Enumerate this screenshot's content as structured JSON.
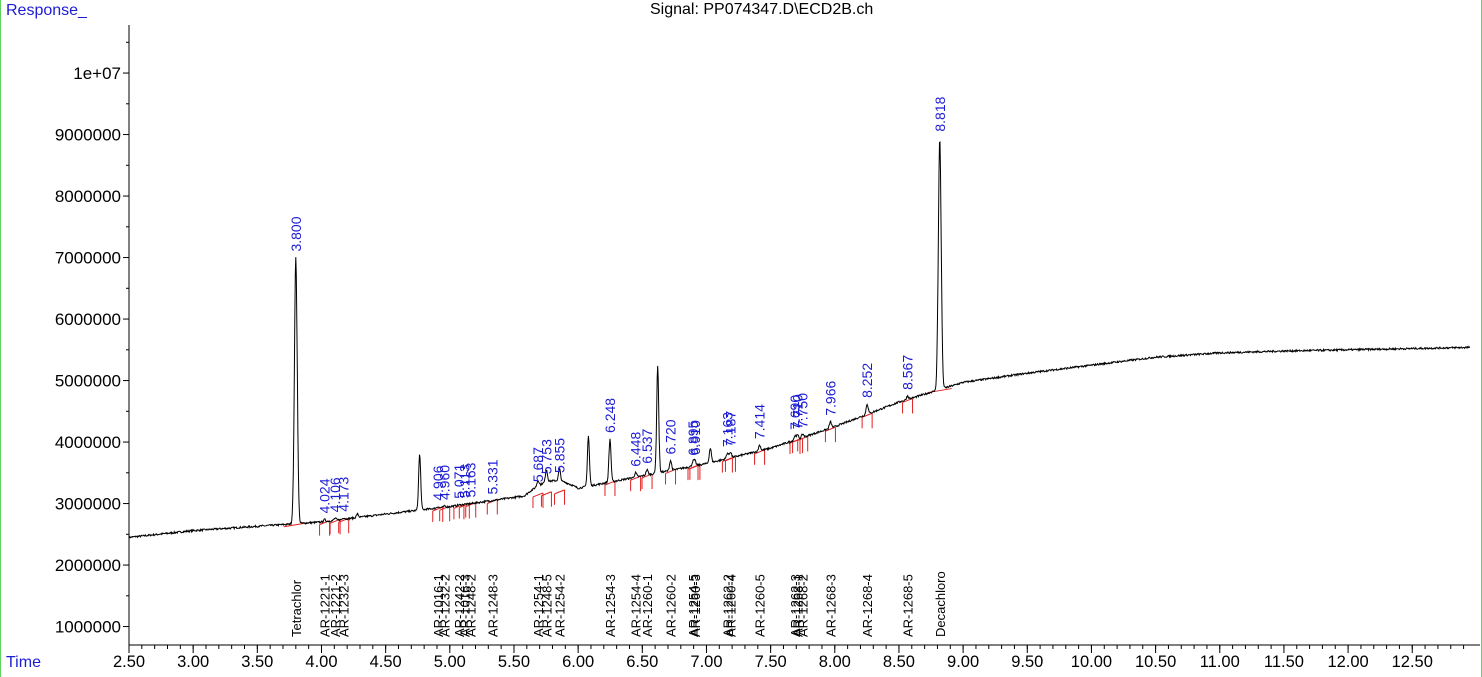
{
  "header": {
    "y_axis_title": "Response_",
    "x_axis_title": "Time",
    "signal_title": "Signal: PP074347.D\\ECD2B.ch"
  },
  "colors": {
    "trace": "#000000",
    "peak_labels": "#1c1cd4",
    "baselines": "#e02020",
    "frame": "#5fd35f"
  },
  "chart_data": {
    "type": "line",
    "title": "Signal: PP074347.D\\ECD2B.ch",
    "xlabel": "Time",
    "ylabel": "Response_",
    "xlim": [
      2.5,
      12.95
    ],
    "ylim": [
      700000,
      10700000
    ],
    "grid": false,
    "x_ticks": [
      "2.50",
      "3.00",
      "3.50",
      "4.00",
      "4.50",
      "5.00",
      "5.50",
      "6.00",
      "6.50",
      "7.00",
      "7.50",
      "8.00",
      "8.50",
      "9.00",
      "9.50",
      "10.00",
      "10.50",
      "11.00",
      "11.50",
      "12.00",
      "12.50"
    ],
    "y_ticks": [
      {
        "v": 1000000,
        "label": "1000000"
      },
      {
        "v": 2000000,
        "label": "2000000"
      },
      {
        "v": 3000000,
        "label": "3000000"
      },
      {
        "v": 4000000,
        "label": "4000000"
      },
      {
        "v": 5000000,
        "label": "5000000"
      },
      {
        "v": 6000000,
        "label": "6000000"
      },
      {
        "v": 7000000,
        "label": "7000000"
      },
      {
        "v": 8000000,
        "label": "8000000"
      },
      {
        "v": 9000000,
        "label": "9000000"
      },
      {
        "v": 10000000,
        "label": "1e+07"
      }
    ],
    "baseline": [
      [
        2.5,
        2450000
      ],
      [
        3.0,
        2560000
      ],
      [
        3.5,
        2630000
      ],
      [
        4.0,
        2700000
      ],
      [
        4.5,
        2830000
      ],
      [
        5.0,
        2950000
      ],
      [
        5.5,
        3100000
      ],
      [
        6.0,
        3250000
      ],
      [
        6.5,
        3450000
      ],
      [
        7.0,
        3650000
      ],
      [
        7.5,
        3900000
      ],
      [
        8.0,
        4250000
      ],
      [
        8.5,
        4650000
      ],
      [
        9.0,
        4970000
      ],
      [
        9.5,
        5120000
      ],
      [
        10.0,
        5250000
      ],
      [
        10.5,
        5380000
      ],
      [
        11.0,
        5450000
      ],
      [
        11.5,
        5480000
      ],
      [
        12.0,
        5500000
      ],
      [
        12.5,
        5520000
      ],
      [
        12.95,
        5540000
      ]
    ],
    "peaks": [
      {
        "t": 3.8,
        "h": 7000000,
        "label": "3.800"
      },
      {
        "t": 4.024,
        "h": 2740000,
        "label": "4.024"
      },
      {
        "t": 4.106,
        "h": 2760000,
        "label": "4.106"
      },
      {
        "t": 4.173,
        "h": 2770000,
        "label": "4.173"
      },
      {
        "t": 4.28,
        "h": 2830000,
        "label": ""
      },
      {
        "t": 4.765,
        "h": 3800000,
        "label": ""
      },
      {
        "t": 4.906,
        "h": 2950000,
        "label": "4.906"
      },
      {
        "t": 4.96,
        "h": 2960000,
        "label": "4.960"
      },
      {
        "t": 5.071,
        "h": 2980000,
        "label": "5.071"
      },
      {
        "t": 5.113,
        "h": 2990000,
        "label": "5.113"
      },
      {
        "t": 5.163,
        "h": 3000000,
        "label": "5.163"
      },
      {
        "t": 5.331,
        "h": 3050000,
        "label": "5.331"
      },
      {
        "t": 5.687,
        "h": 3250000,
        "label": "5.687"
      },
      {
        "t": 5.753,
        "h": 3380000,
        "label": "5.753"
      },
      {
        "t": 5.855,
        "h": 3400000,
        "label": "5.855"
      },
      {
        "t": 6.08,
        "h": 4100000,
        "label": ""
      },
      {
        "t": 6.248,
        "h": 4050000,
        "label": "6.248"
      },
      {
        "t": 6.448,
        "h": 3500000,
        "label": "6.448"
      },
      {
        "t": 6.537,
        "h": 3550000,
        "label": "6.537"
      },
      {
        "t": 6.62,
        "h": 5250000,
        "label": ""
      },
      {
        "t": 6.72,
        "h": 3700000,
        "label": "6.720"
      },
      {
        "t": 6.895,
        "h": 3680000,
        "label": "6.895"
      },
      {
        "t": 6.91,
        "h": 3690000,
        "label": "6.910"
      },
      {
        "t": 7.03,
        "h": 3900000,
        "label": ""
      },
      {
        "t": 7.163,
        "h": 3820000,
        "label": "7.163"
      },
      {
        "t": 7.187,
        "h": 3840000,
        "label": "7.187"
      },
      {
        "t": 7.414,
        "h": 3950000,
        "label": "7.414"
      },
      {
        "t": 7.69,
        "h": 4100000,
        "label": "7.690"
      },
      {
        "t": 7.71,
        "h": 4110000,
        "label": "7.710"
      },
      {
        "t": 7.75,
        "h": 4130000,
        "label": "7.750"
      },
      {
        "t": 7.966,
        "h": 4330000,
        "label": "7.966"
      },
      {
        "t": 8.252,
        "h": 4620000,
        "label": "8.252"
      },
      {
        "t": 8.567,
        "h": 4750000,
        "label": "8.567"
      },
      {
        "t": 8.818,
        "h": 8950000,
        "label": "8.818"
      }
    ],
    "compounds": [
      {
        "t": 3.8,
        "name": "Tetrachlor"
      },
      {
        "t": 4.024,
        "name": "AR-1221-1"
      },
      {
        "t": 4.106,
        "name": "AR-1221-2"
      },
      {
        "t": 4.173,
        "name": "AR-1232-3"
      },
      {
        "t": 4.906,
        "name": "AR-1016-1"
      },
      {
        "t": 4.96,
        "name": "AR-1232-2"
      },
      {
        "t": 5.071,
        "name": "AR-1242-2"
      },
      {
        "t": 5.113,
        "name": "AR-1016-3"
      },
      {
        "t": 5.163,
        "name": "AR-1248-2"
      },
      {
        "t": 5.331,
        "name": "AR-1248-3"
      },
      {
        "t": 5.687,
        "name": "AR-1254-1"
      },
      {
        "t": 5.753,
        "name": "AR-1248-5"
      },
      {
        "t": 5.855,
        "name": "AR-1254-2"
      },
      {
        "t": 6.248,
        "name": "AR-1254-3"
      },
      {
        "t": 6.448,
        "name": "AR-1254-4"
      },
      {
        "t": 6.537,
        "name": "AR-1260-1"
      },
      {
        "t": 6.72,
        "name": "AR-1260-2"
      },
      {
        "t": 6.895,
        "name": "AR-1254-5"
      },
      {
        "t": 6.91,
        "name": "AR-1260-3"
      },
      {
        "t": 7.163,
        "name": "AR-1262-2"
      },
      {
        "t": 7.187,
        "name": "AR-1260-4"
      },
      {
        "t": 7.414,
        "name": "AR-1260-5"
      },
      {
        "t": 7.69,
        "name": "AR-1262-3"
      },
      {
        "t": 7.71,
        "name": "AR-1268-1"
      },
      {
        "t": 7.75,
        "name": "AR-1268-2"
      },
      {
        "t": 7.966,
        "name": "AR-1268-3"
      },
      {
        "t": 8.252,
        "name": "AR-1268-4"
      },
      {
        "t": 8.567,
        "name": "AR-1268-5"
      },
      {
        "t": 8.818,
        "name": "Decachloro"
      }
    ]
  }
}
